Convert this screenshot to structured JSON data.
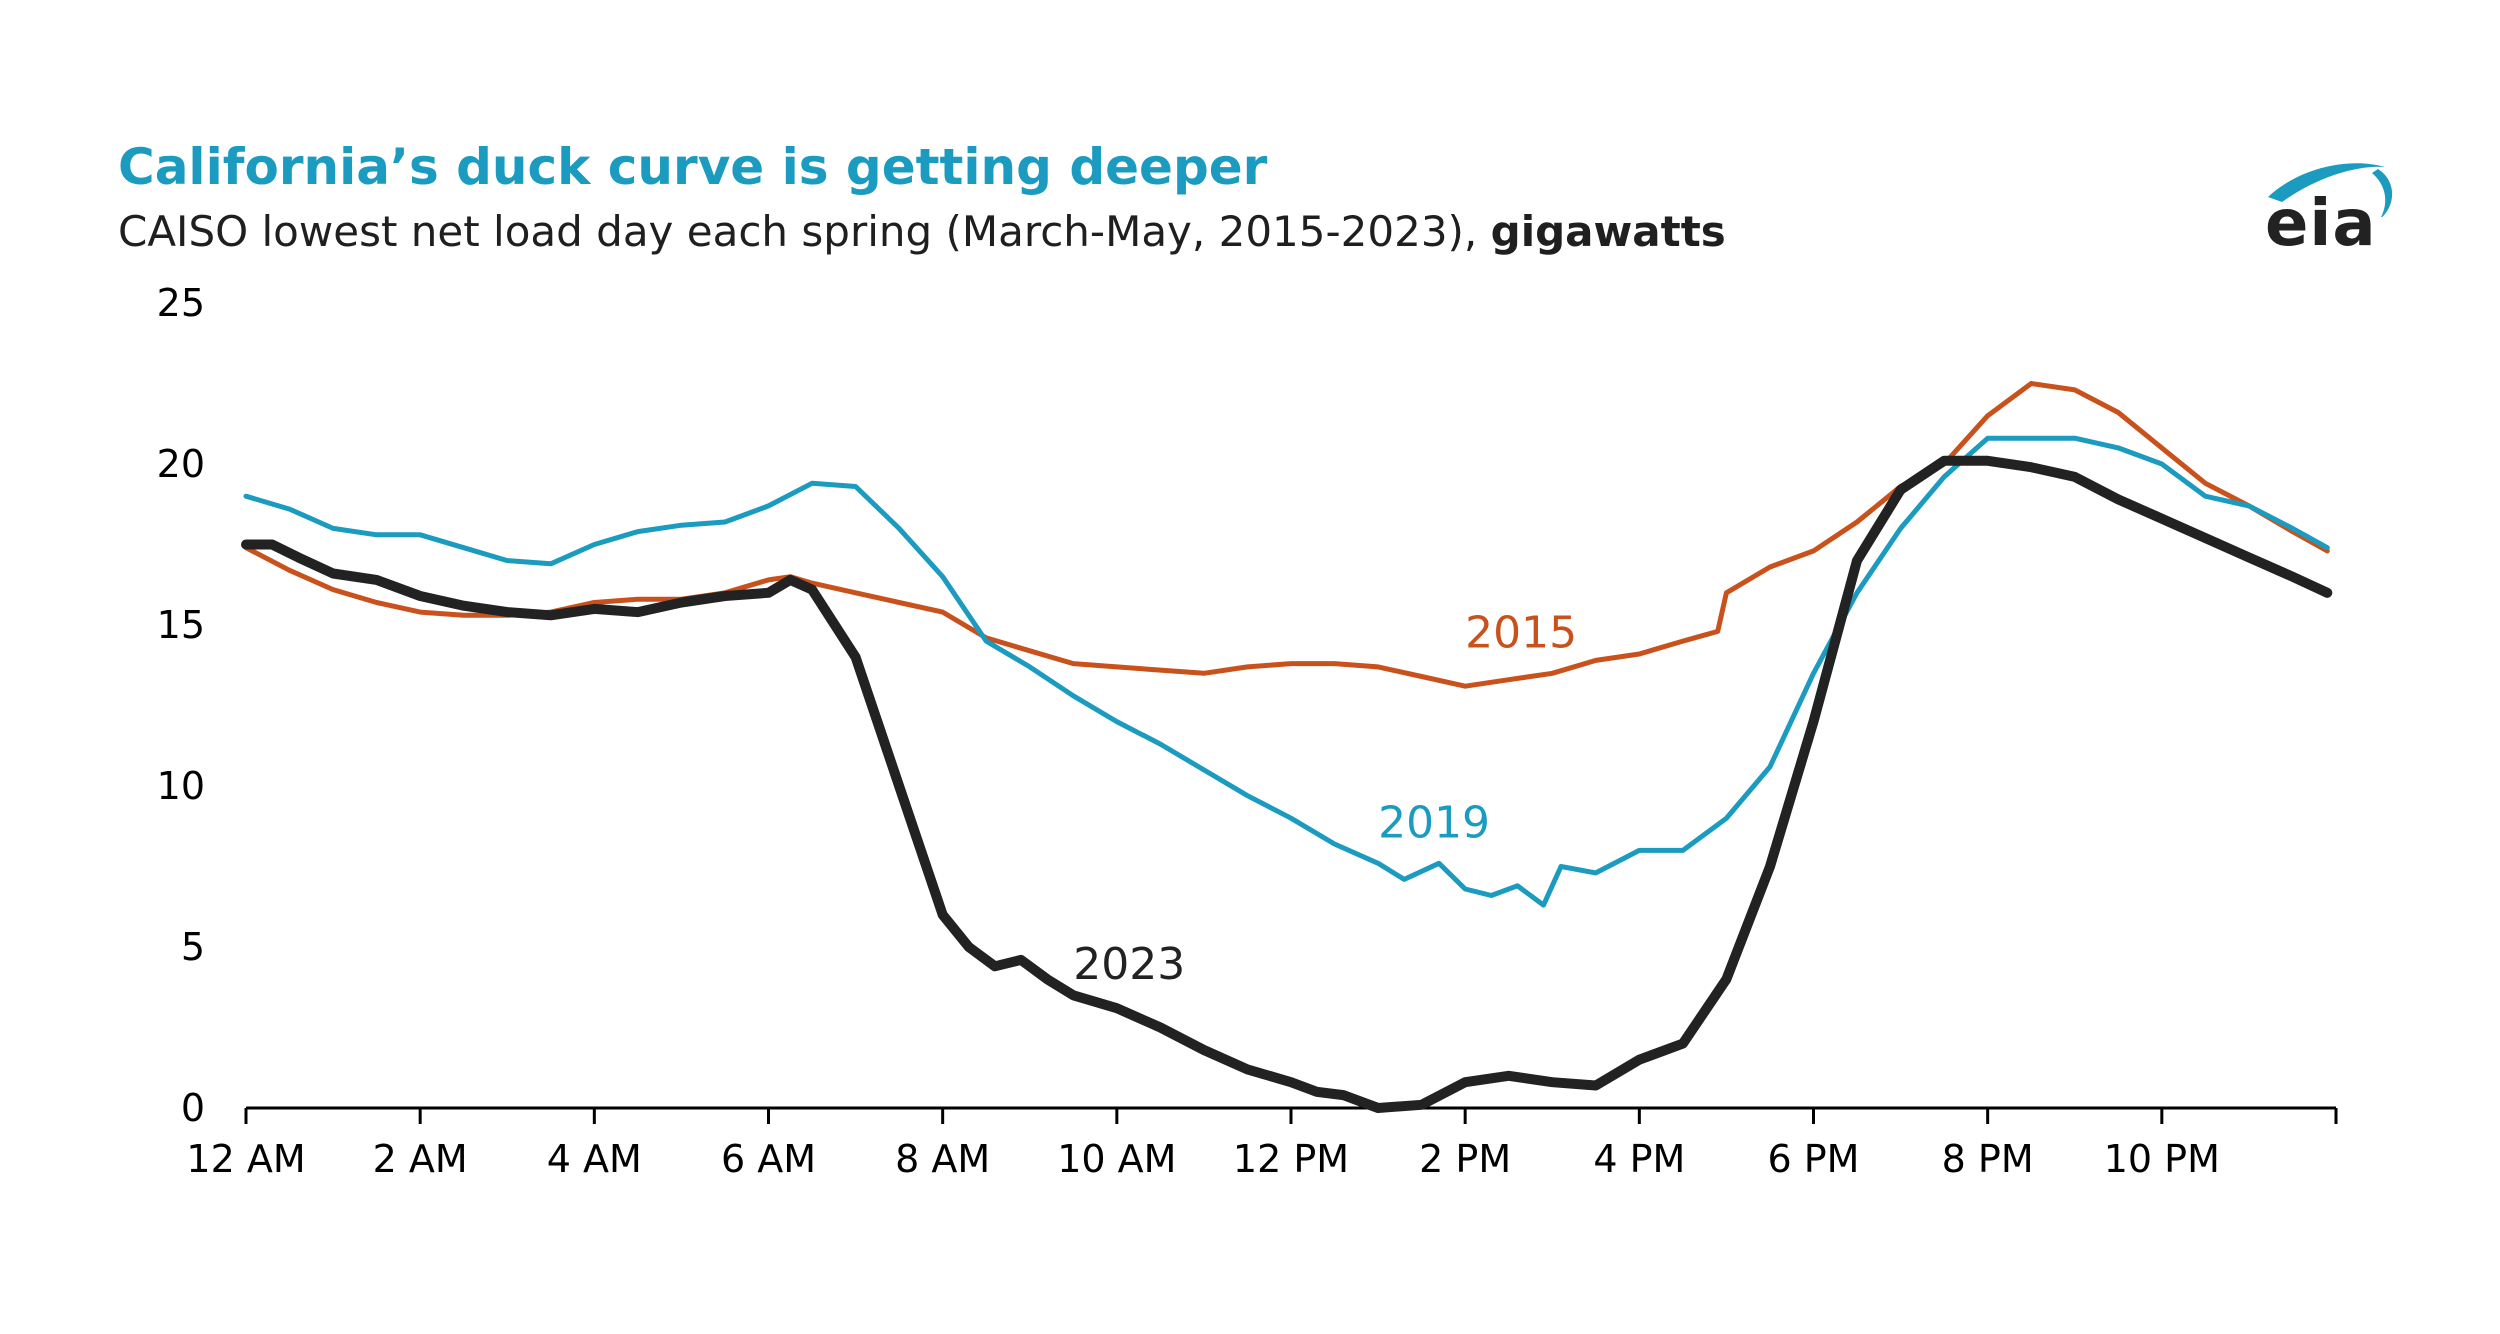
{
  "title": "California’s duck curve is getting deeper",
  "subtitle_main": "CAISO lowest net load day each spring (March-May, 2015-2023),",
  "subtitle_units": "gigawatts",
  "logo_text": "eia",
  "colors": {
    "title": "#1a9bbf",
    "s2015": "#c9521c",
    "s2019": "#1a9bbf",
    "s2023": "#222222"
  },
  "chart_data": {
    "type": "line",
    "title": "California’s duck curve is getting deeper",
    "xlabel": "",
    "ylabel": "gigawatts",
    "xlim": [
      0,
      24
    ],
    "ylim": [
      0,
      25
    ],
    "yticks": [
      0,
      5,
      10,
      15,
      20,
      25
    ],
    "ytick_labels": [
      "0",
      "5",
      "10",
      "15",
      "20",
      "25"
    ],
    "xticks": [
      0,
      2,
      4,
      6,
      8,
      10,
      12,
      14,
      16,
      18,
      20,
      22,
      24
    ],
    "xtick_labels": [
      "12 AM",
      "2 AM",
      "4 AM",
      "6 AM",
      "8 AM",
      "10 AM",
      "12 PM",
      "2 PM",
      "4 PM",
      "6 PM",
      "8 PM",
      "10 PM",
      ""
    ],
    "series": [
      {
        "name": "2015",
        "label": "2015",
        "color": "#c9521c",
        "x": [
          0,
          0.5,
          1,
          1.5,
          2,
          2.5,
          3,
          3.5,
          4,
          4.5,
          5,
          5.5,
          6,
          6.25,
          6.5,
          7,
          7.5,
          8,
          8.5,
          9,
          9.5,
          10,
          10.5,
          11,
          11.5,
          12,
          12.5,
          13,
          13.5,
          14,
          14.5,
          15,
          15.5,
          16,
          16.5,
          16.9,
          17,
          17.5,
          18,
          18.5,
          19,
          19.5,
          20,
          20.5,
          21,
          21.5,
          22,
          22.5,
          23,
          23.5,
          23.9
        ],
        "y": [
          17.4,
          16.7,
          16.1,
          15.7,
          15.4,
          15.3,
          15.3,
          15.4,
          15.7,
          15.8,
          15.8,
          16.0,
          16.4,
          16.5,
          16.3,
          16.0,
          15.7,
          15.4,
          14.6,
          14.2,
          13.8,
          13.7,
          13.6,
          13.5,
          13.7,
          13.8,
          13.8,
          13.7,
          13.4,
          13.1,
          13.3,
          13.5,
          13.9,
          14.1,
          14.5,
          14.8,
          16.0,
          16.8,
          17.3,
          18.2,
          19.3,
          20.0,
          21.5,
          22.5,
          22.3,
          21.6,
          20.5,
          19.4,
          18.7,
          17.9,
          17.3
        ]
      },
      {
        "name": "2019",
        "label": "2019",
        "color": "#1a9bbf",
        "x": [
          0,
          0.5,
          1,
          1.5,
          2,
          2.5,
          3,
          3.5,
          4,
          4.5,
          5,
          5.5,
          6,
          6.5,
          7,
          7.5,
          8,
          8.5,
          9,
          9.5,
          10,
          10.5,
          11,
          11.5,
          12,
          12.5,
          13,
          13.3,
          13.7,
          14,
          14.3,
          14.6,
          14.9,
          15.1,
          15.5,
          16,
          16.5,
          17,
          17.5,
          18,
          18.5,
          19,
          19.5,
          20,
          20.5,
          21,
          21.5,
          22,
          22.5,
          23,
          23.5,
          23.9
        ],
        "y": [
          19.0,
          18.6,
          18.0,
          17.8,
          17.8,
          17.4,
          17.0,
          16.9,
          17.5,
          17.9,
          18.1,
          18.2,
          18.7,
          19.4,
          19.3,
          18.0,
          16.5,
          14.5,
          13.7,
          12.8,
          12.0,
          11.3,
          10.5,
          9.7,
          9.0,
          8.2,
          7.6,
          7.1,
          7.6,
          6.8,
          6.6,
          6.9,
          6.3,
          7.5,
          7.3,
          8.0,
          8.0,
          9.0,
          10.6,
          13.5,
          16.0,
          18.0,
          19.6,
          20.8,
          20.8,
          20.8,
          20.5,
          20.0,
          19.0,
          18.7,
          18.0,
          17.4
        ]
      },
      {
        "name": "2023",
        "label": "2023",
        "color": "#222222",
        "x": [
          0,
          0.3,
          0.6,
          1,
          1.5,
          2,
          2.5,
          3,
          3.5,
          4,
          4.5,
          5,
          5.5,
          6,
          6.25,
          6.5,
          7,
          7.5,
          8,
          8.3,
          8.6,
          8.9,
          9.2,
          9.5,
          10,
          10.5,
          11,
          11.5,
          12,
          12.3,
          12.6,
          13,
          13.5,
          14,
          14.5,
          15,
          15.5,
          16,
          16.5,
          17,
          17.5,
          18,
          18.5,
          19,
          19.5,
          20,
          20.5,
          21,
          21.5,
          22,
          22.5,
          23,
          23.5,
          23.9
        ],
        "y": [
          17.5,
          17.5,
          17.1,
          16.6,
          16.4,
          15.9,
          15.6,
          15.4,
          15.3,
          15.5,
          15.4,
          15.7,
          15.9,
          16.0,
          16.4,
          16.1,
          14.0,
          10.0,
          6.0,
          5.0,
          4.4,
          4.6,
          4.0,
          3.5,
          3.1,
          2.5,
          1.8,
          1.2,
          0.8,
          0.5,
          0.4,
          0.0,
          0.1,
          0.8,
          1.0,
          0.8,
          0.7,
          1.5,
          2.0,
          4.0,
          7.5,
          12.0,
          17.0,
          19.2,
          20.1,
          20.1,
          19.9,
          19.6,
          18.9,
          18.3,
          17.7,
          17.1,
          16.5,
          16.0
        ]
      }
    ],
    "annotations": [
      {
        "text": "2015",
        "x": 14.0,
        "y": 14.3,
        "color": "#c9521c"
      },
      {
        "text": "2019",
        "x": 13.0,
        "y": 8.4,
        "color": "#1a9bbf"
      },
      {
        "text": "2023",
        "x": 9.5,
        "y": 4.0,
        "color": "#222222"
      }
    ]
  }
}
